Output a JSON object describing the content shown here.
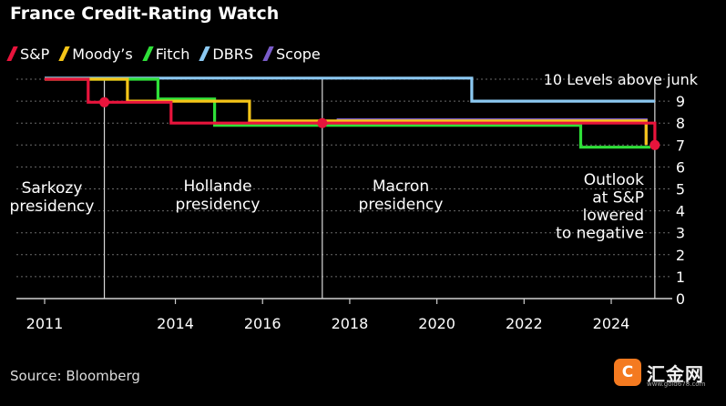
{
  "title": "France Credit-Rating Watch",
  "source": "Source: Bloomberg",
  "watermark": {
    "brand": "汇金网",
    "url": "www.gold678.com",
    "logo_glyph": "C"
  },
  "chart_data": {
    "type": "line",
    "title": "France Credit-Rating Watch",
    "xlabel": "",
    "ylabel": "",
    "xlim": [
      2011,
      2025.4
    ],
    "ylim": [
      0,
      10
    ],
    "x_ticks": [
      "2011",
      "2014",
      "2016",
      "2018",
      "2020",
      "2022",
      "2024"
    ],
    "x_tick_values": [
      2011,
      2014,
      2016,
      2018,
      2020,
      2022,
      2024
    ],
    "y_ticks": [
      "0",
      "1",
      "2",
      "3",
      "4",
      "5",
      "6",
      "7",
      "8",
      "9"
    ],
    "y_tick_values": [
      0,
      1,
      2,
      3,
      4,
      5,
      6,
      7,
      8,
      9
    ],
    "y_top_label": "10 Levels above junk",
    "y_axis_position": "right",
    "grid": true,
    "legend_position": "top-left",
    "series": [
      {
        "name": "S&P",
        "color": "#e8143c",
        "points": [
          [
            2011.0,
            10
          ],
          [
            2012.0,
            10
          ],
          [
            2012.0,
            8.95
          ],
          [
            2013.9,
            8.95
          ],
          [
            2013.9,
            8
          ],
          [
            2025.0,
            8
          ],
          [
            2025.0,
            7
          ]
        ]
      },
      {
        "name": "Moody’s",
        "color": "#f5c518",
        "points": [
          [
            2011.0,
            10
          ],
          [
            2012.9,
            10
          ],
          [
            2012.9,
            9
          ],
          [
            2015.7,
            9
          ],
          [
            2015.7,
            8.1
          ],
          [
            2024.8,
            8.1
          ],
          [
            2024.8,
            7
          ]
        ]
      },
      {
        "name": "Fitch",
        "color": "#2fe039",
        "points": [
          [
            2011.0,
            10
          ],
          [
            2013.6,
            10
          ],
          [
            2013.6,
            9.1
          ],
          [
            2014.9,
            9.1
          ],
          [
            2014.9,
            7.9
          ],
          [
            2023.3,
            7.9
          ],
          [
            2023.3,
            6.9
          ],
          [
            2024.9,
            6.9
          ]
        ]
      },
      {
        "name": "DBRS",
        "color": "#8cc9f2",
        "points": [
          [
            2011.0,
            10.05
          ],
          [
            2020.8,
            10.05
          ],
          [
            2020.8,
            9
          ],
          [
            2025.0,
            9
          ]
        ]
      },
      {
        "name": "Scope",
        "color": "#7a5cc9",
        "points": [
          [
            2017.7,
            8.15
          ],
          [
            2024.8,
            8.15
          ],
          [
            2024.8,
            7
          ]
        ]
      }
    ],
    "events": [
      {
        "label": "Sarkozy presidency",
        "label_lines": [
          "Sarkozy",
          "presidency"
        ],
        "x": 2012.37,
        "y": 8.95
      },
      {
        "label": "Hollande presidency",
        "label_lines": [
          "Hollande",
          "presidency"
        ],
        "x": 2017.37,
        "y": 8
      },
      {
        "label": "Macron presidency",
        "label_lines": [
          "Macron",
          "presidency"
        ],
        "x": null,
        "y": null
      },
      {
        "label": "Outlook at S&P lowered to negative",
        "label_lines": [
          "Outlook",
          "at S&P",
          "lowered",
          "to negative"
        ],
        "x": 2025.0,
        "y": 7
      }
    ]
  }
}
